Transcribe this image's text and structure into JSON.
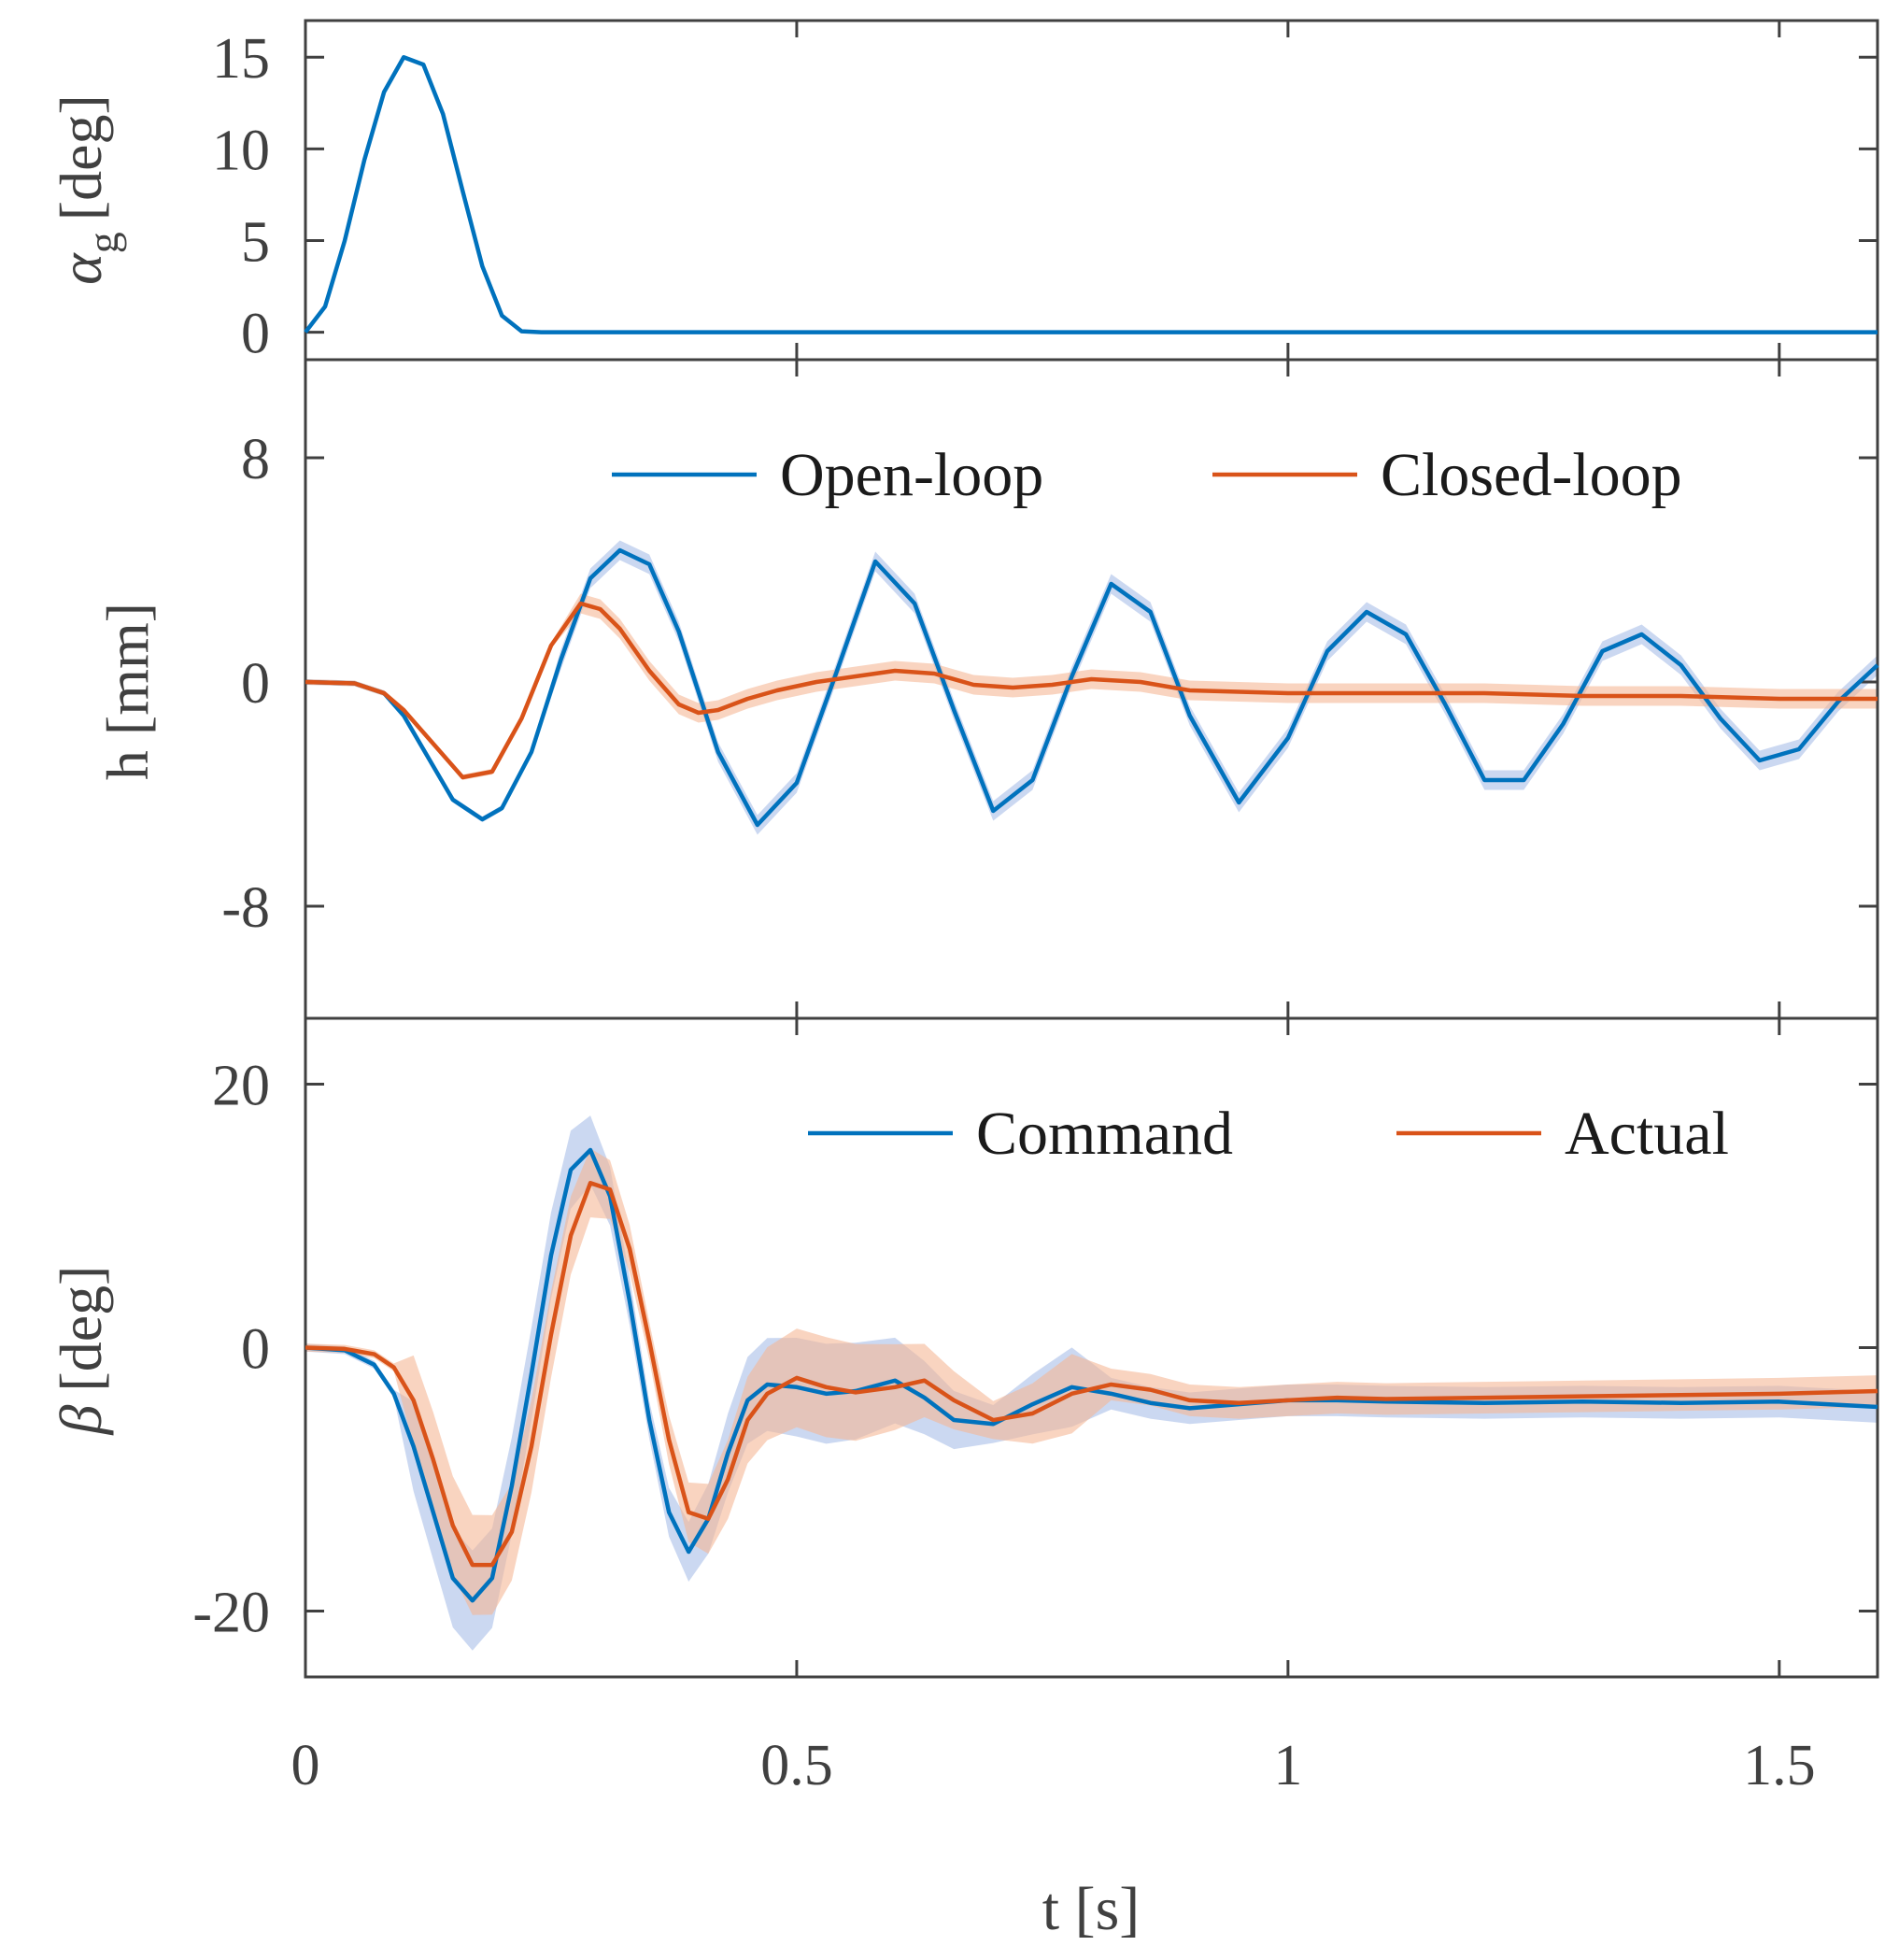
{
  "colors": {
    "blue": "#0072BD",
    "orange": "#D95319",
    "blue_band": "#A9BEE8",
    "orange_band": "#F5B896",
    "axis": "#404040"
  },
  "x_axis": {
    "label": "t [s]",
    "ticks": [
      {
        "value": 0,
        "label": "0"
      },
      {
        "value": 0.5,
        "label": "0.5"
      },
      {
        "value": 1,
        "label": "1"
      },
      {
        "value": 1.5,
        "label": "1.5"
      }
    ]
  },
  "chart_data": [
    {
      "type": "line",
      "panel": "top",
      "ylabel": "α g [deg]",
      "ylabel_symbol": "α",
      "ylabel_subscript": "g",
      "ylabel_unit": "[deg]",
      "xlim": [
        0,
        1.6
      ],
      "ylim": [
        -1.5,
        17
      ],
      "yticks": [
        {
          "value": 0,
          "label": "0"
        },
        {
          "value": 5,
          "label": "5"
        },
        {
          "value": 10,
          "label": "10"
        },
        {
          "value": 15,
          "label": "15"
        }
      ],
      "legend": [],
      "series": [
        {
          "name": "α g",
          "color": "blue",
          "x": [
            0,
            0.02,
            0.04,
            0.06,
            0.08,
            0.1,
            0.12,
            0.14,
            0.16,
            0.18,
            0.2,
            0.22,
            0.24,
            0.3,
            0.5,
            0.8,
            1.0,
            1.2,
            1.4,
            1.6
          ],
          "y": [
            0,
            1.4,
            5.0,
            9.4,
            13.1,
            15.0,
            14.6,
            11.9,
            7.7,
            3.6,
            0.9,
            0.05,
            0,
            0,
            0,
            0,
            0,
            0,
            0,
            0
          ]
        }
      ]
    },
    {
      "type": "line",
      "panel": "middle",
      "ylabel": "h [mm]",
      "xlim": [
        0,
        1.6
      ],
      "ylim": [
        -12,
        11.5
      ],
      "yticks": [
        {
          "value": 8,
          "label": "8"
        },
        {
          "value": 0,
          "label": "0"
        },
        {
          "value": -8,
          "label": "-8"
        }
      ],
      "legend": [
        {
          "label": "Open-loop",
          "color": "blue"
        },
        {
          "label": "Closed-loop",
          "color": "orange"
        }
      ],
      "series": [
        {
          "name": "Open-loop",
          "color": "blue",
          "x": [
            0,
            0.05,
            0.08,
            0.1,
            0.12,
            0.15,
            0.18,
            0.2,
            0.23,
            0.26,
            0.29,
            0.32,
            0.35,
            0.38,
            0.42,
            0.46,
            0.5,
            0.54,
            0.58,
            0.62,
            0.66,
            0.7,
            0.74,
            0.78,
            0.82,
            0.86,
            0.9,
            0.95,
            1.0,
            1.04,
            1.08,
            1.12,
            1.16,
            1.2,
            1.24,
            1.28,
            1.32,
            1.36,
            1.4,
            1.44,
            1.48,
            1.52,
            1.56,
            1.6
          ],
          "y": [
            0,
            -0.05,
            -0.4,
            -1.2,
            -2.4,
            -4.2,
            -4.9,
            -4.5,
            -2.5,
            0.8,
            3.7,
            4.7,
            4.2,
            1.8,
            -2.5,
            -5.1,
            -3.6,
            0.3,
            4.3,
            2.8,
            -1.0,
            -4.6,
            -3.5,
            0.2,
            3.5,
            2.5,
            -1.2,
            -4.3,
            -2.0,
            1.1,
            2.5,
            1.7,
            -0.8,
            -3.5,
            -3.5,
            -1.5,
            1.1,
            1.7,
            0.6,
            -1.3,
            -2.8,
            -2.4,
            -0.7,
            0.6
          ]
        },
        {
          "name": "Closed-loop",
          "color": "orange",
          "x": [
            0,
            0.05,
            0.08,
            0.1,
            0.13,
            0.16,
            0.19,
            0.22,
            0.25,
            0.28,
            0.3,
            0.32,
            0.35,
            0.38,
            0.4,
            0.42,
            0.45,
            0.48,
            0.52,
            0.56,
            0.6,
            0.64,
            0.68,
            0.72,
            0.76,
            0.8,
            0.85,
            0.9,
            1.0,
            1.1,
            1.2,
            1.3,
            1.4,
            1.5,
            1.6
          ],
          "y": [
            0,
            -0.05,
            -0.4,
            -1.0,
            -2.2,
            -3.4,
            -3.2,
            -1.3,
            1.3,
            2.8,
            2.6,
            1.9,
            0.4,
            -0.8,
            -1.1,
            -1.0,
            -0.6,
            -0.3,
            0,
            0.2,
            0.4,
            0.3,
            -0.1,
            -0.2,
            -0.1,
            0.1,
            0,
            -0.3,
            -0.4,
            -0.4,
            -0.4,
            -0.5,
            -0.5,
            -0.6,
            -0.6
          ]
        }
      ]
    },
    {
      "type": "line",
      "panel": "bottom",
      "ylabel": "β [deg]",
      "ylabel_symbol": "β",
      "ylabel_unit": "[deg]",
      "xlim": [
        0,
        1.6
      ],
      "ylim": [
        -25,
        25
      ],
      "yticks": [
        {
          "value": 20,
          "label": "20"
        },
        {
          "value": 0,
          "label": "0"
        },
        {
          "value": -20,
          "label": "-20"
        }
      ],
      "legend": [
        {
          "label": "Command",
          "color": "blue"
        },
        {
          "label": "Actual",
          "color": "orange"
        }
      ],
      "series": [
        {
          "name": "Command",
          "color": "blue",
          "x": [
            0,
            0.04,
            0.07,
            0.09,
            0.11,
            0.13,
            0.15,
            0.17,
            0.19,
            0.21,
            0.23,
            0.25,
            0.27,
            0.29,
            0.31,
            0.33,
            0.35,
            0.37,
            0.39,
            0.41,
            0.43,
            0.45,
            0.47,
            0.5,
            0.53,
            0.56,
            0.6,
            0.63,
            0.66,
            0.7,
            0.74,
            0.78,
            0.82,
            0.86,
            0.9,
            0.95,
            1.0,
            1.05,
            1.1,
            1.2,
            1.3,
            1.4,
            1.5,
            1.6
          ],
          "y": [
            0,
            -0.2,
            -1.3,
            -3.5,
            -7.5,
            -12.5,
            -17.5,
            -19.2,
            -17.5,
            -10.5,
            -2.0,
            7.0,
            13.5,
            15.0,
            11.5,
            3.5,
            -5.5,
            -12.5,
            -15.5,
            -13.0,
            -8.0,
            -4.0,
            -2.8,
            -3.0,
            -3.5,
            -3.3,
            -2.5,
            -3.8,
            -5.5,
            -5.8,
            -4.3,
            -3.0,
            -3.5,
            -4.2,
            -4.6,
            -4.3,
            -4.0,
            -4.0,
            -4.1,
            -4.2,
            -4.1,
            -4.2,
            -4.1,
            -4.5
          ]
        },
        {
          "name": "Actual",
          "color": "orange",
          "x": [
            0,
            0.04,
            0.07,
            0.09,
            0.11,
            0.13,
            0.15,
            0.17,
            0.19,
            0.21,
            0.23,
            0.25,
            0.27,
            0.29,
            0.31,
            0.33,
            0.35,
            0.37,
            0.39,
            0.41,
            0.43,
            0.45,
            0.47,
            0.5,
            0.53,
            0.56,
            0.6,
            0.63,
            0.66,
            0.7,
            0.74,
            0.78,
            0.82,
            0.86,
            0.9,
            0.95,
            1.0,
            1.05,
            1.1,
            1.2,
            1.3,
            1.4,
            1.5,
            1.6
          ],
          "y": [
            0,
            -0.1,
            -0.5,
            -1.5,
            -4.0,
            -8.5,
            -13.5,
            -16.5,
            -16.5,
            -14.0,
            -7.5,
            1.0,
            8.5,
            12.5,
            12.0,
            7.5,
            0.5,
            -7.0,
            -12.5,
            -13.0,
            -10.0,
            -5.5,
            -3.5,
            -2.3,
            -3.0,
            -3.4,
            -3.0,
            -2.5,
            -4.0,
            -5.5,
            -5.0,
            -3.5,
            -2.8,
            -3.2,
            -4.0,
            -4.2,
            -4.0,
            -3.8,
            -3.9,
            -3.8,
            -3.7,
            -3.6,
            -3.5,
            -3.3
          ]
        }
      ]
    }
  ]
}
